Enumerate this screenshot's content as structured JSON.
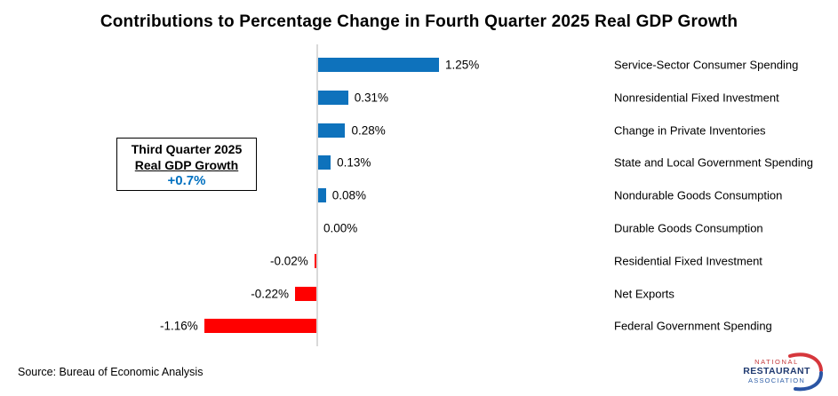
{
  "chart_data": {
    "type": "bar",
    "orientation": "horizontal",
    "title": "Contributions to Percentage Change in Fourth Quarter 2025 Real GDP Growth",
    "categories": [
      "Service-Sector Consumer Spending",
      "Nonresidential Fixed Investment",
      "Change in Private Inventories",
      "State and Local Government Spending",
      "Nondurable Goods Consumption",
      "Durable Goods Consumption",
      "Residential Fixed Investment",
      "Net Exports",
      "Federal Government Spending"
    ],
    "values": [
      1.25,
      0.31,
      0.28,
      0.13,
      0.08,
      0.0,
      -0.02,
      -0.22,
      -1.16
    ],
    "value_labels": [
      "1.25%",
      "0.31%",
      "0.28%",
      "0.13%",
      "0.08%",
      "0.00%",
      "-0.02%",
      "-0.22%",
      "-1.16%"
    ],
    "unit": "%",
    "xlim": [
      -1.3,
      1.45
    ],
    "grid": false,
    "legend": false,
    "positive_color": "#0e72bc",
    "negative_color": "#ff0000",
    "axis_color": "#d9d9d9"
  },
  "annotation": {
    "line1": "Third Quarter 2025",
    "line2": "Real GDP Growth",
    "value": "+0.7%",
    "value_color": "#0070c0"
  },
  "source_note": "Source: Bureau of Economic Analysis",
  "logo": {
    "line1": "NATIONAL",
    "line2": "RESTAURANT",
    "line3": "ASSOCIATION",
    "line1_color": "#c3393b",
    "line2_color": "#203a70",
    "line3_color": "#3060a8",
    "swoosh_red": "#d6373c",
    "swoosh_blue": "#2b55a4"
  }
}
